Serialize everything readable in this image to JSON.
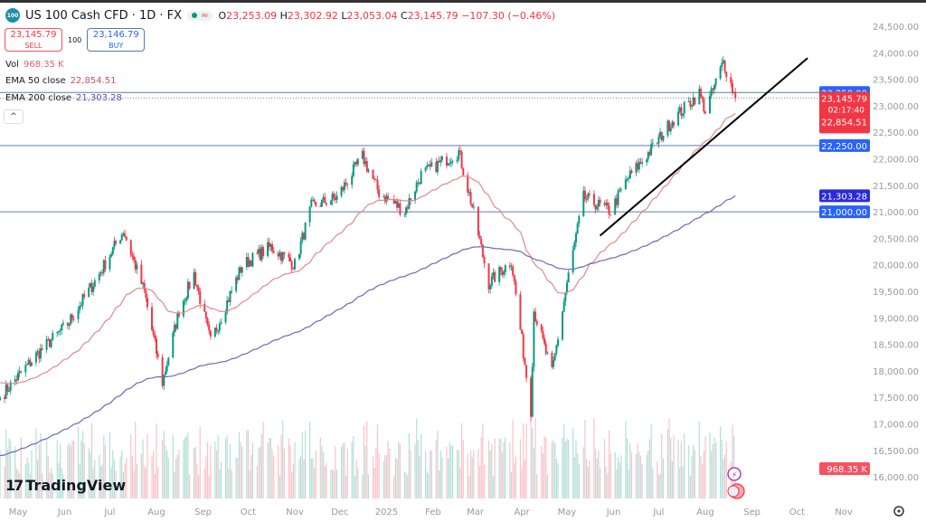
{
  "header": {
    "symbol_badge": "100",
    "title": "US 100 Cash CFD · 1D · FX",
    "status_icon": "market-open-dot",
    "open_label": "O",
    "open": "23,253.09",
    "high_label": "H",
    "high": "23,302.92",
    "low_label": "L",
    "low": "23,053.04",
    "close_label": "C",
    "close": "23,145.79",
    "change": "−107.30 (−0.46%)"
  },
  "trade": {
    "sell_price": "23,145.79",
    "sell_label": "SELL",
    "quantity": "100",
    "buy_price": "23,146.79",
    "buy_label": "BUY"
  },
  "legend": {
    "vol_label": "Vol",
    "vol_value": "968.35 K",
    "ema50_label": "EMA 50 close",
    "ema50_value": "22,854.51",
    "ema200_label": "EMA 200 close",
    "ema200_value": "21,303.28",
    "collapse": "^"
  },
  "brand": "TradingView",
  "colors": {
    "up": "#089981",
    "down": "#f23645",
    "ema50": "#e08a8a",
    "ema200": "#6a6ab8",
    "hline": "#5b7fa6",
    "badge_blue": "#2962ff",
    "badge_ema200": "#2a2ad8",
    "trendline": "#000000"
  },
  "chart_data": {
    "type": "candlestick",
    "interval": "1D",
    "ylim": [
      15800,
      24800
    ],
    "y_ticks": [
      "24,500.00",
      "24,000.00",
      "23,500.00",
      "23,000.00",
      "22,500.00",
      "22,000.00",
      "21,500.00",
      "21,000.00",
      "20,500.00",
      "20,000.00",
      "19,500.00",
      "19,000.00",
      "18,500.00",
      "18,000.00",
      "17,500.00",
      "17,000.00",
      "16,500.00",
      "16,000.00"
    ],
    "x_ticks": [
      "May",
      "Jun",
      "Jul",
      "Aug",
      "Sep",
      "Oct",
      "Nov",
      "Dec",
      "2025",
      "Feb",
      "Mar",
      "Apr",
      "May",
      "Jun",
      "Jul",
      "Aug",
      "Sep",
      "Oct",
      "Nov"
    ],
    "x_range": [
      "2024-04-19",
      "2025-11-30"
    ],
    "close_path": [
      [
        "2024-04-19",
        17500
      ],
      [
        "2024-05-13",
        18290
      ],
      [
        "2024-06-03",
        18885
      ],
      [
        "2024-06-24",
        19825
      ],
      [
        "2024-07-10",
        20650
      ],
      [
        "2024-07-24",
        19480
      ],
      [
        "2024-08-05",
        17780
      ],
      [
        "2024-08-16",
        19140
      ],
      [
        "2024-08-26",
        19825
      ],
      [
        "2024-09-06",
        18540
      ],
      [
        "2024-09-27",
        19990
      ],
      [
        "2024-10-16",
        20340
      ],
      [
        "2024-11-01",
        20000
      ],
      [
        "2024-11-12",
        21100
      ],
      [
        "2024-11-29",
        21270
      ],
      [
        "2024-12-16",
        22040
      ],
      [
        "2024-12-27",
        21360
      ],
      [
        "2025-01-13",
        21010
      ],
      [
        "2025-01-24",
        21700
      ],
      [
        "2025-02-18",
        22130
      ],
      [
        "2025-02-27",
        21100
      ],
      [
        "2025-03-10",
        19650
      ],
      [
        "2025-03-25",
        20080
      ],
      [
        "2025-04-07",
        17265
      ],
      [
        "2025-04-09",
        19140
      ],
      [
        "2025-04-21",
        17950
      ],
      [
        "2025-05-01",
        19650
      ],
      [
        "2025-05-12",
        21270
      ],
      [
        "2025-05-30",
        21010
      ],
      [
        "2025-06-10",
        21610
      ],
      [
        "2025-06-27",
        22210
      ],
      [
        "2025-07-10",
        22725
      ],
      [
        "2025-07-28",
        23240
      ],
      [
        "2025-08-01",
        22900
      ],
      [
        "2025-08-13",
        23830
      ],
      [
        "2025-08-21",
        23145.79
      ]
    ],
    "ema50_last": 22854.51,
    "ema200_last": 21303.28,
    "horizontal_lines": [
      {
        "price": 23250,
        "label": "23,250.00"
      },
      {
        "price": 22250,
        "label": "22,250.00"
      },
      {
        "price": 21000,
        "label": "21,000.00"
      }
    ],
    "current_price": {
      "price": 23145.79,
      "label": "23,145.79",
      "countdown": "02:17:40"
    },
    "ema50_badge": "22,854.51",
    "ema200_badge": "21,303.28",
    "volume_badge": "968.35 K",
    "trendline": [
      [
        "2025-05-23",
        20550
      ],
      [
        "2025-10-08",
        23900
      ]
    ]
  }
}
